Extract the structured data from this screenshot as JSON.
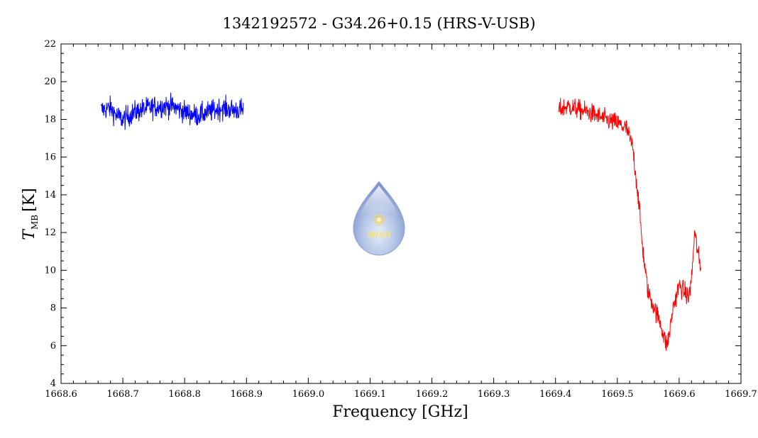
{
  "chart_data": {
    "type": "line",
    "title": "1342192572 - G34.26+0.15 (HRS-V-USB)",
    "xlabel": "Frequency [GHz]",
    "ylabel_main": "T",
    "ylabel_sub": "MB",
    "ylabel_unit": "[K]",
    "xlim": [
      1668.6,
      1669.7
    ],
    "ylim": [
      4,
      22
    ],
    "xticks": [
      "1668.6",
      "1668.7",
      "1668.8",
      "1668.9",
      "1669.0",
      "1669.1",
      "1669.2",
      "1669.3",
      "1669.4",
      "1669.5",
      "1669.6",
      "1669.7"
    ],
    "yticks": [
      "4",
      "6",
      "8",
      "10",
      "12",
      "14",
      "16",
      "18",
      "20",
      "22"
    ],
    "grid": false,
    "series": [
      {
        "color": "#0000ff",
        "x_range": [
          1668.665,
          1668.895
        ],
        "points": [
          [
            1668.665,
            18.5
          ],
          [
            1668.68,
            18.6
          ],
          [
            1668.69,
            18.2
          ],
          [
            1668.7,
            18.0
          ],
          [
            1668.72,
            18.4
          ],
          [
            1668.74,
            18.6
          ],
          [
            1668.76,
            18.7
          ],
          [
            1668.78,
            18.7
          ],
          [
            1668.8,
            18.4
          ],
          [
            1668.82,
            18.2
          ],
          [
            1668.84,
            18.4
          ],
          [
            1668.86,
            18.6
          ],
          [
            1668.88,
            18.5
          ],
          [
            1668.895,
            18.5
          ]
        ],
        "noise_amplitude": 0.5
      },
      {
        "color": "#ff0000",
        "x_range": [
          1669.405,
          1669.635
        ],
        "points": [
          [
            1669.405,
            18.5
          ],
          [
            1669.42,
            18.7
          ],
          [
            1669.44,
            18.5
          ],
          [
            1669.46,
            18.3
          ],
          [
            1669.48,
            18.0
          ],
          [
            1669.5,
            17.8
          ],
          [
            1669.515,
            17.5
          ],
          [
            1669.525,
            16.5
          ],
          [
            1669.53,
            15.0
          ],
          [
            1669.535,
            13.5
          ],
          [
            1669.54,
            11.5
          ],
          [
            1669.545,
            10.0
          ],
          [
            1669.55,
            8.8
          ],
          [
            1669.56,
            8.0
          ],
          [
            1669.57,
            7.2
          ],
          [
            1669.575,
            6.5
          ],
          [
            1669.58,
            6.0
          ],
          [
            1669.585,
            6.8
          ],
          [
            1669.59,
            8.0
          ],
          [
            1669.6,
            9.2
          ],
          [
            1669.61,
            8.8
          ],
          [
            1669.615,
            8.5
          ],
          [
            1669.62,
            9.5
          ],
          [
            1669.625,
            12.0
          ],
          [
            1669.63,
            11.0
          ],
          [
            1669.635,
            10.0
          ]
        ],
        "noise_amplitude": 0.45
      }
    ]
  },
  "logo": {
    "icon": "wish-droplet-logo",
    "text": "WISH",
    "colors": {
      "drop_light": "#cfdcf0",
      "drop_dark": "#7f96cc",
      "star": "#ffd23a",
      "text": "#f5e27a"
    }
  }
}
